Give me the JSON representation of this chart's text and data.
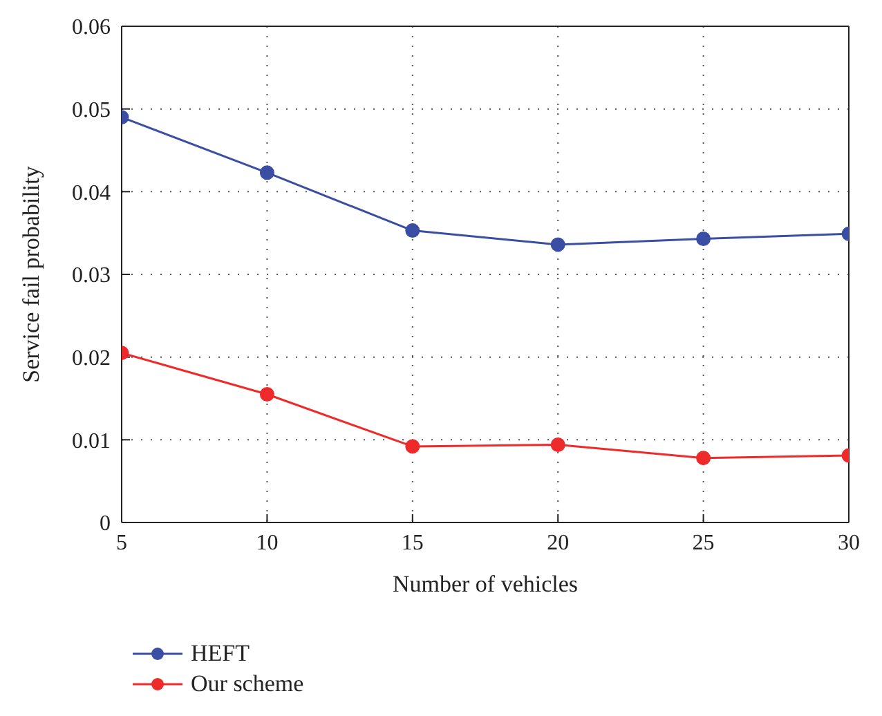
{
  "chart_data": {
    "type": "line",
    "xlabel": "Number of vehicles",
    "ylabel": "Service fail probability",
    "x": [
      5,
      10,
      15,
      20,
      25,
      30
    ],
    "series": [
      {
        "name": "HEFT",
        "color": "#3a4fa3",
        "values": [
          0.049,
          0.0423,
          0.0353,
          0.0336,
          0.0343,
          0.0349
        ]
      },
      {
        "name": "Our scheme",
        "color": "#ee2a2a",
        "values": [
          0.0205,
          0.0155,
          0.0092,
          0.0094,
          0.0078,
          0.0081
        ]
      }
    ],
    "xlim": [
      5,
      30
    ],
    "xticks": [
      5,
      10,
      15,
      20,
      25,
      30
    ],
    "ylim": [
      0,
      0.06
    ],
    "yticks": [
      0,
      0.01,
      0.02,
      0.03,
      0.04,
      0.05,
      0.06
    ],
    "grid": true,
    "legend": "bottom left",
    "marker": "circle",
    "line_style": "solid"
  }
}
